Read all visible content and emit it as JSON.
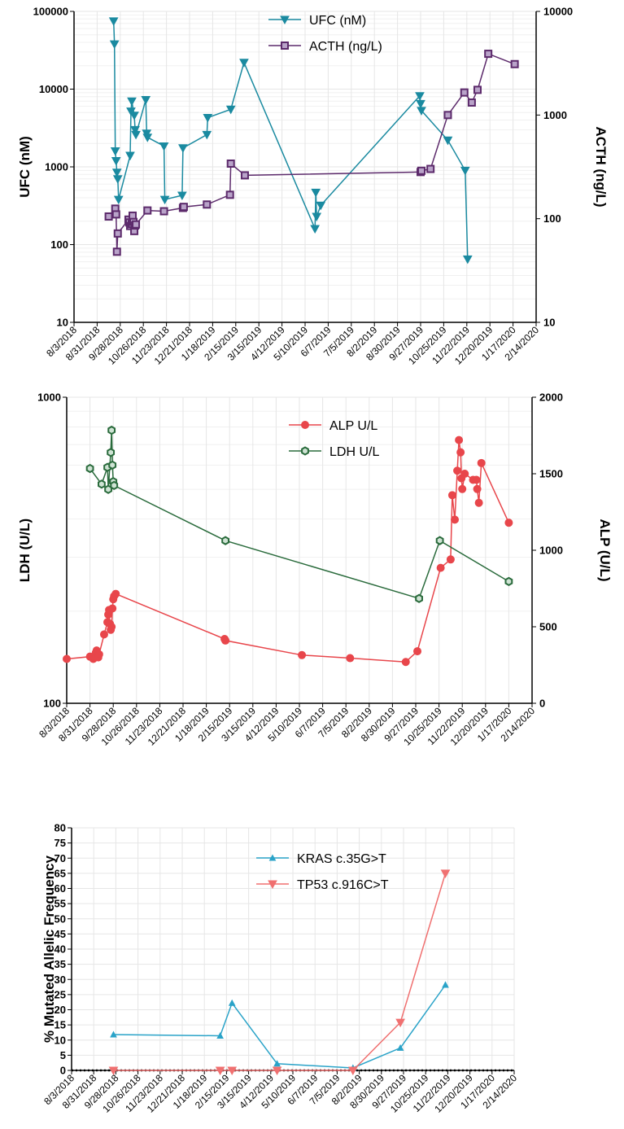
{
  "x_tick_labels": [
    "8/3/2018",
    "8/31/2018",
    "9/28/2018",
    "10/26/2018",
    "11/23/2018",
    "12/21/2018",
    "1/18/2019",
    "2/15/2019",
    "3/15/2019",
    "4/12/2019",
    "5/10/2019",
    "6/7/2019",
    "7/5/2019",
    "8/2/2019",
    "8/30/2019",
    "9/27/2019",
    "10/25/2019",
    "11/22/2019",
    "12/20/2019",
    "1/17/2020",
    "2/14/2020"
  ],
  "chart_data": [
    {
      "type": "line",
      "panel": "top",
      "x_axis_type": "date",
      "x_tick_labels": [
        "8/3/2018",
        "8/31/2018",
        "9/28/2018",
        "10/26/2018",
        "11/23/2018",
        "12/21/2018",
        "1/18/2019",
        "2/15/2019",
        "3/15/2019",
        "4/12/2019",
        "5/10/2019",
        "6/7/2019",
        "7/5/2019",
        "8/2/2019",
        "8/30/2019",
        "9/27/2019",
        "10/25/2019",
        "11/22/2019",
        "12/20/2019",
        "1/17/2020",
        "2/14/2020"
      ],
      "ylabel": "UFC (nM)",
      "y2label": "ACTH (ng/L)",
      "y_scale": "log",
      "ylim": [
        10,
        100000
      ],
      "y_ticks": [
        "10",
        "100",
        "1000",
        "10000",
        "100000"
      ],
      "y2_scale": "log",
      "y2lim": [
        10,
        10000
      ],
      "y2_ticks": [
        "10",
        "100",
        "1000",
        "10000"
      ],
      "grid": true,
      "legend": "top-center",
      "series": [
        {
          "name": "UFC (nM)",
          "axis": "left",
          "color": "#1a8aa0",
          "marker": "triangle-down",
          "points": [
            [
              "2018-09-20",
              75000
            ],
            [
              "2018-09-21",
              38000
            ],
            [
              "2018-09-22",
              1600
            ],
            [
              "2018-09-23",
              1200
            ],
            [
              "2018-09-24",
              850
            ],
            [
              "2018-09-25",
              700
            ],
            [
              "2018-09-26",
              380
            ],
            [
              "2018-10-10",
              1400
            ],
            [
              "2018-10-11",
              5200
            ],
            [
              "2018-10-12",
              7000
            ],
            [
              "2018-10-15",
              4600
            ],
            [
              "2018-10-16",
              3000
            ],
            [
              "2018-10-17",
              2600
            ],
            [
              "2018-10-29",
              7300
            ],
            [
              "2018-10-30",
              2700
            ],
            [
              "2018-10-31",
              2400
            ],
            [
              "2018-11-20",
              1850
            ],
            [
              "2018-11-21",
              380
            ],
            [
              "2018-12-12",
              430
            ],
            [
              "2018-12-13",
              1750
            ],
            [
              "2019-01-11",
              2600
            ],
            [
              "2019-01-12",
              4300
            ],
            [
              "2019-02-09",
              5500
            ],
            [
              "2019-02-25",
              22000
            ],
            [
              "2019-05-22",
              160
            ],
            [
              "2019-05-23",
              470
            ],
            [
              "2019-05-24",
              230
            ],
            [
              "2019-05-29",
              320
            ],
            [
              "2019-09-26",
              8200
            ],
            [
              "2019-09-27",
              6500
            ],
            [
              "2019-09-28",
              5300
            ],
            [
              "2019-10-30",
              2200
            ],
            [
              "2019-11-20",
              900
            ],
            [
              "2019-11-23",
              65
            ]
          ]
        },
        {
          "name": "ACTH (ng/L)",
          "axis": "right",
          "color": "#5c2a6b",
          "marker": "square",
          "points": [
            [
              "2018-09-14",
              105
            ],
            [
              "2018-09-22",
              125
            ],
            [
              "2018-09-23",
              110
            ],
            [
              "2018-09-24",
              48
            ],
            [
              "2018-09-25",
              72
            ],
            [
              "2018-10-08",
              98
            ],
            [
              "2018-10-09",
              92
            ],
            [
              "2018-10-10",
              85
            ],
            [
              "2018-10-12",
              89
            ],
            [
              "2018-10-13",
              107
            ],
            [
              "2018-10-14",
              93
            ],
            [
              "2018-10-15",
              76
            ],
            [
              "2018-10-16",
              86
            ],
            [
              "2018-10-17",
              88
            ],
            [
              "2018-10-31",
              120
            ],
            [
              "2018-11-20",
              118
            ],
            [
              "2018-12-13",
              127
            ],
            [
              "2018-12-14",
              130
            ],
            [
              "2019-01-11",
              137
            ],
            [
              "2019-02-08",
              170
            ],
            [
              "2019-02-09",
              340
            ],
            [
              "2019-02-26",
              262
            ],
            [
              "2019-09-27",
              282
            ],
            [
              "2019-09-28",
              290
            ],
            [
              "2019-10-09",
              302
            ],
            [
              "2019-10-30",
              1000
            ],
            [
              "2019-11-19",
              1650
            ],
            [
              "2019-11-28",
              1320
            ],
            [
              "2019-12-05",
              1750
            ],
            [
              "2019-12-18",
              3900
            ],
            [
              "2020-01-19",
              3100
            ]
          ]
        }
      ]
    },
    {
      "type": "line",
      "panel": "middle",
      "x_axis_type": "date",
      "x_tick_labels": [
        "8/3/2018",
        "8/31/2018",
        "9/28/2018",
        "10/26/2018",
        "11/23/2018",
        "12/21/2018",
        "1/18/2019",
        "2/15/2019",
        "3/15/2019",
        "4/12/2019",
        "5/10/2019",
        "6/7/2019",
        "7/5/2019",
        "8/2/2019",
        "8/30/2019",
        "9/27/2019",
        "10/25/2019",
        "11/22/2019",
        "12/20/2019",
        "1/17/2020",
        "2/14/2020"
      ],
      "ylabel": "LDH (U/L)",
      "y2label": "ALP (U/L)",
      "y_scale": "log",
      "ylim": [
        100,
        1000
      ],
      "y_ticks": [
        "100",
        "1000"
      ],
      "y2_scale": "linear",
      "y2lim": [
        0,
        2000
      ],
      "y2_ticks": [
        "0",
        "500",
        "1000",
        "1500",
        "2000"
      ],
      "grid": true,
      "legend": "top-center",
      "series": [
        {
          "name": "ALP  U/L",
          "axis": "right",
          "color": "#e8464b",
          "marker": "circle",
          "points": [
            [
              "2018-08-03",
              290
            ],
            [
              "2018-08-31",
              305
            ],
            [
              "2018-09-04",
              290
            ],
            [
              "2018-09-06",
              300
            ],
            [
              "2018-09-07",
              330
            ],
            [
              "2018-09-08",
              345
            ],
            [
              "2018-09-10",
              300
            ],
            [
              "2018-09-11",
              320
            ],
            [
              "2018-09-17",
              450
            ],
            [
              "2018-09-21",
              530
            ],
            [
              "2018-09-22",
              580
            ],
            [
              "2018-09-23",
              610
            ],
            [
              "2018-09-24",
              520
            ],
            [
              "2018-09-25",
              480
            ],
            [
              "2018-09-26",
              500
            ],
            [
              "2018-09-27",
              620
            ],
            [
              "2018-09-28",
              680
            ],
            [
              "2018-09-29",
              700
            ],
            [
              "2018-10-01",
              715
            ],
            [
              "2019-02-09",
              420
            ],
            [
              "2019-02-10",
              410
            ],
            [
              "2019-05-13",
              315
            ],
            [
              "2019-07-10",
              295
            ],
            [
              "2019-09-15",
              270
            ],
            [
              "2019-09-29",
              340
            ],
            [
              "2019-10-27",
              885
            ],
            [
              "2019-11-08",
              940
            ],
            [
              "2019-11-10",
              1360
            ],
            [
              "2019-11-13",
              1200
            ],
            [
              "2019-11-16",
              1520
            ],
            [
              "2019-11-18",
              1720
            ],
            [
              "2019-11-20",
              1640
            ],
            [
              "2019-11-21",
              1470
            ],
            [
              "2019-11-22",
              1400
            ],
            [
              "2019-11-25",
              1500
            ],
            [
              "2019-12-05",
              1460
            ],
            [
              "2019-12-09",
              1460
            ],
            [
              "2019-12-10",
              1400
            ],
            [
              "2019-12-12",
              1310
            ],
            [
              "2019-12-15",
              1570
            ],
            [
              "2020-01-17",
              1180
            ]
          ]
        },
        {
          "name": "LDH U/L",
          "axis": "left",
          "color": "#2a6b3c",
          "marker": "hexagon",
          "points": [
            [
              "2018-08-31",
              585
            ],
            [
              "2018-09-14",
              520
            ],
            [
              "2018-09-21",
              590
            ],
            [
              "2018-09-22",
              500
            ],
            [
              "2018-09-25",
              660
            ],
            [
              "2018-09-26",
              780
            ],
            [
              "2018-09-27",
              600
            ],
            [
              "2018-09-28",
              530
            ],
            [
              "2018-09-29",
              515
            ],
            [
              "2019-02-10",
              340
            ],
            [
              "2019-10-01",
              220
            ],
            [
              "2019-10-26",
              340
            ],
            [
              "2020-01-17",
              250
            ]
          ]
        }
      ]
    },
    {
      "type": "line",
      "panel": "bottom",
      "x_axis_type": "date",
      "x_tick_labels": [
        "8/3/2018",
        "8/31/2018",
        "9/28/2018",
        "10/26/2018",
        "11/23/2018",
        "12/21/2018",
        "1/18/2019",
        "2/15/2019",
        "3/15/2019",
        "4/12/2019",
        "5/10/2019",
        "6/7/2019",
        "7/5/2019",
        "8/2/2019",
        "8/30/2019",
        "9/27/2019",
        "10/25/2019",
        "11/22/2019",
        "12/20/2019",
        "1/17/2020",
        "2/14/2020"
      ],
      "ylabel": "% Mutated Allelic Frequency",
      "y_scale": "linear",
      "ylim": [
        0,
        80
      ],
      "y_ticks": [
        "0",
        "5",
        "10",
        "15",
        "20",
        "25",
        "30",
        "35",
        "40",
        "45",
        "50",
        "55",
        "60",
        "65",
        "70",
        "75",
        "80"
      ],
      "grid": true,
      "legend": "top-center",
      "baseline": "dotted at 0",
      "series": [
        {
          "name": "KRAS c.35G>T",
          "color": "#2aa3c8",
          "marker": "triangle-up",
          "points": [
            [
              "2018-09-25",
              11.8
            ],
            [
              "2019-02-07",
              11.4
            ],
            [
              "2019-02-22",
              22.2
            ],
            [
              "2019-04-20",
              2.2
            ],
            [
              "2019-07-25",
              0.8
            ],
            [
              "2019-09-23",
              7.4
            ],
            [
              "2019-11-19",
              28.2
            ]
          ]
        },
        {
          "name": "TP53 c.916C>T",
          "color": "#f07070",
          "marker": "triangle-down",
          "points": [
            [
              "2018-09-25",
              0
            ],
            [
              "2019-02-07",
              0
            ],
            [
              "2019-02-22",
              0
            ],
            [
              "2019-04-20",
              0
            ],
            [
              "2019-07-25",
              0
            ],
            [
              "2019-09-23",
              15.8
            ],
            [
              "2019-11-19",
              65.0
            ]
          ]
        }
      ]
    }
  ]
}
